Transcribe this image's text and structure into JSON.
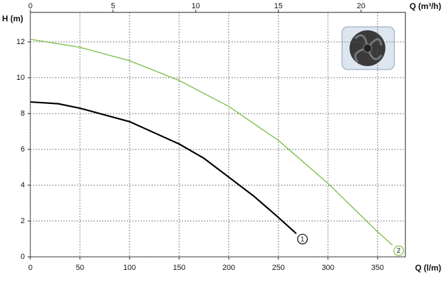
{
  "chart_data": {
    "type": "line",
    "y_label": "H (m)",
    "x_label": "Q (l/m)",
    "x2_label": "Q (m³/h)",
    "xlim": [
      0,
      378
    ],
    "xticks": [
      0,
      50,
      100,
      150,
      200,
      250,
      300,
      350
    ],
    "x2lim": [
      0,
      22.68
    ],
    "x2ticks": [
      0,
      5,
      10,
      15,
      20
    ],
    "ylim": [
      0,
      13.65
    ],
    "yticks": [
      0,
      2,
      4,
      6,
      8,
      10,
      12
    ],
    "grid": true,
    "series": [
      {
        "name": "1",
        "color": "#000000",
        "x": [
          0,
          28,
          50,
          100,
          150,
          175,
          200,
          225,
          250,
          268
        ],
        "values": [
          8.65,
          8.55,
          8.3,
          7.55,
          6.3,
          5.5,
          4.45,
          3.4,
          2.2,
          1.3
        ]
      },
      {
        "name": "2",
        "color": "#7cc04a",
        "x": [
          0,
          50,
          100,
          150,
          200,
          250,
          300,
          350,
          365
        ],
        "values": [
          12.15,
          11.7,
          10.95,
          9.85,
          8.4,
          6.5,
          4.1,
          1.4,
          0.65
        ]
      }
    ]
  }
}
